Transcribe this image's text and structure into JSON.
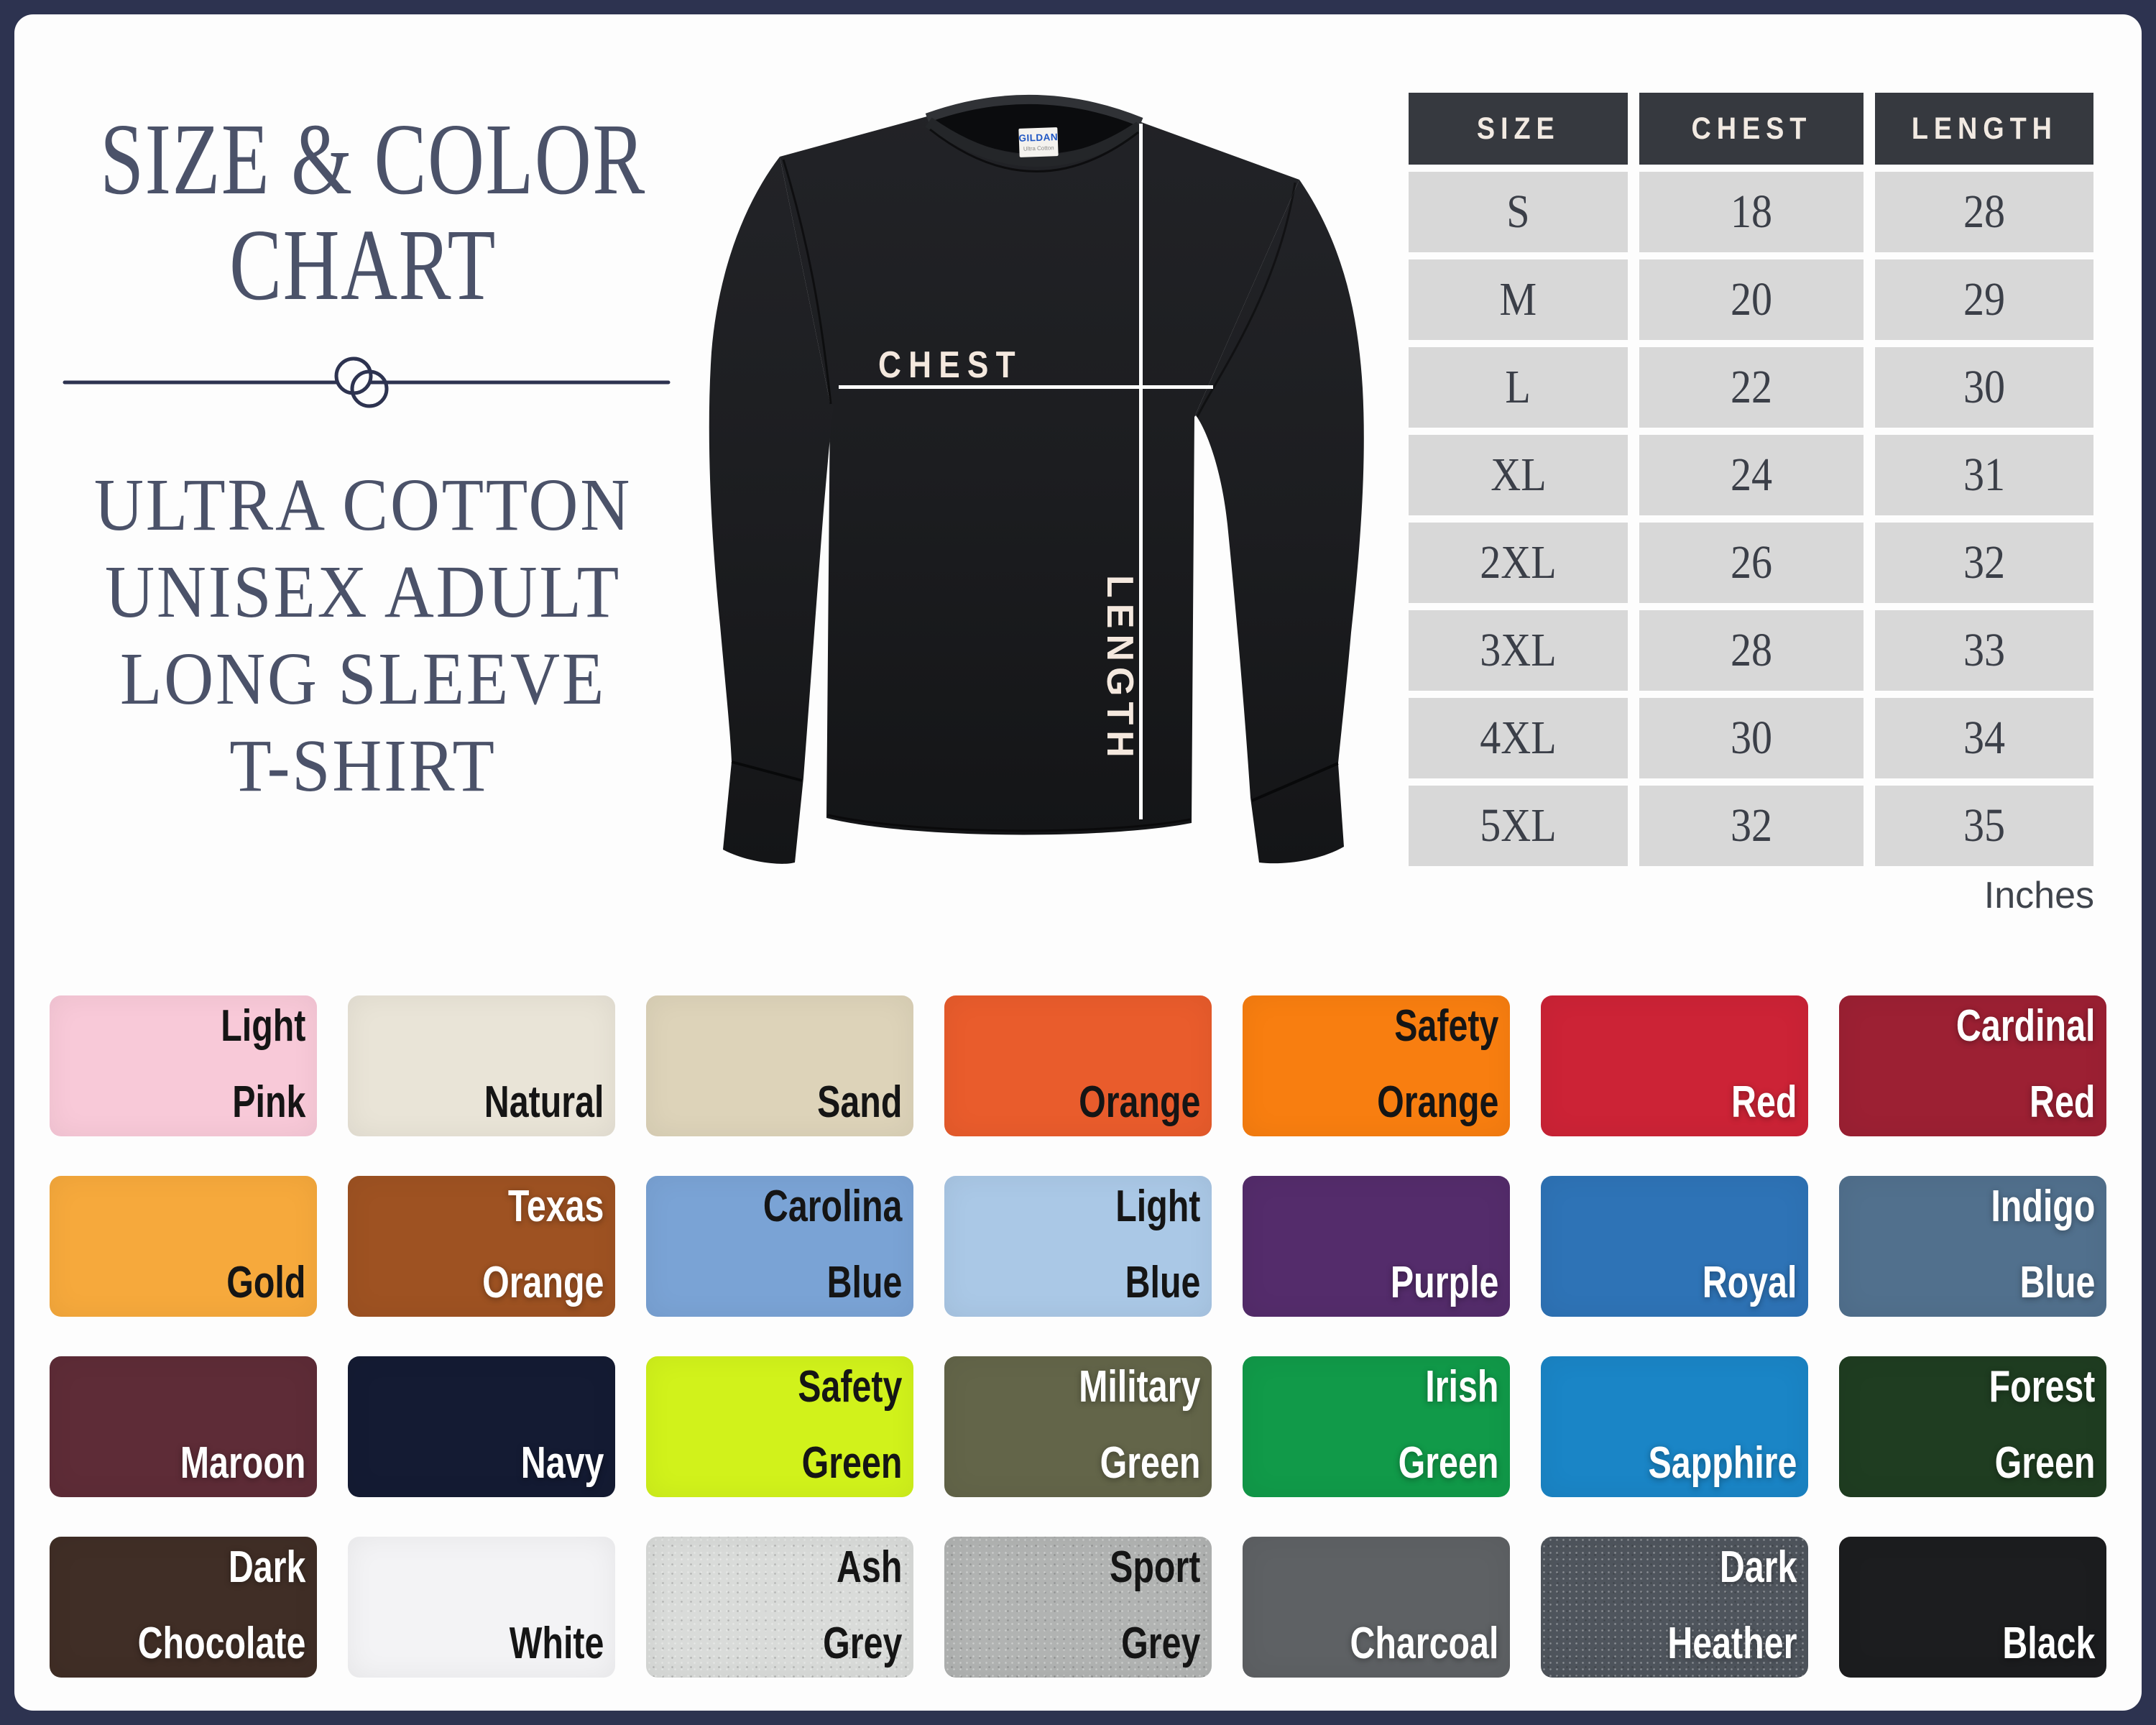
{
  "page": {
    "title_lines": [
      "SIZE & COLOR",
      "CHART"
    ],
    "subtitle_lines": [
      "ULTRA COTTON",
      "UNISEX ADULT",
      "LONG SLEEVE",
      "T-SHIRT"
    ]
  },
  "shirt": {
    "chest_label": "CHEST",
    "length_label": "LENGTH",
    "brand": "GILDAN",
    "brand_sub": "Ultra Cotton"
  },
  "size_table": {
    "headers": [
      "SIZE",
      "CHEST",
      "LENGTH"
    ],
    "rows": [
      [
        "S",
        "18",
        "28"
      ],
      [
        "M",
        "20",
        "29"
      ],
      [
        "L",
        "22",
        "30"
      ],
      [
        "XL",
        "24",
        "31"
      ],
      [
        "2XL",
        "26",
        "32"
      ],
      [
        "3XL",
        "28",
        "33"
      ],
      [
        "4XL",
        "30",
        "34"
      ],
      [
        "5XL",
        "32",
        "35"
      ]
    ],
    "unit_note": "Inches"
  },
  "chart_data": {
    "type": "table",
    "title": "SIZE & COLOR CHART",
    "subtitle": "ULTRA COTTON UNISEX ADULT LONG SLEEVE T-SHIRT",
    "columns": [
      "SIZE",
      "CHEST",
      "LENGTH"
    ],
    "rows": [
      [
        "S",
        18,
        28
      ],
      [
        "M",
        20,
        29
      ],
      [
        "L",
        22,
        30
      ],
      [
        "XL",
        24,
        31
      ],
      [
        "2XL",
        26,
        32
      ],
      [
        "3XL",
        28,
        33
      ],
      [
        "4XL",
        30,
        34
      ],
      [
        "5XL",
        32,
        35
      ]
    ],
    "units": "Inches"
  },
  "colors": {
    "frame": "#2d3350",
    "canvas": "#fdfdfd",
    "title_text": "#4b5269",
    "table_header_bg": "#36393f",
    "table_header_text": "#f2eae2",
    "table_cell_bg": "#d8d8d8",
    "table_cell_text": "#3b3f48",
    "measure_line": "#ffffff",
    "measure_text": "#f4e8de",
    "shirt_black": "#1d1e21"
  },
  "swatch_grid": {
    "rows": 4,
    "cols": 7,
    "swatches": [
      {
        "name": "Light Pink",
        "lines": [
          "Light",
          "Pink"
        ],
        "hex": "#f8c9d8",
        "text": "dark",
        "heather": false
      },
      {
        "name": "Natural",
        "lines": [
          "Natural"
        ],
        "hex": "#e9e4d7",
        "text": "dark",
        "heather": false
      },
      {
        "name": "Sand",
        "lines": [
          "Sand"
        ],
        "hex": "#ddd3b9",
        "text": "dark",
        "heather": false
      },
      {
        "name": "Orange",
        "lines": [
          "Orange"
        ],
        "hex": "#e95c2c",
        "text": "dark",
        "heather": false
      },
      {
        "name": "Safety Orange",
        "lines": [
          "Safety",
          "Orange"
        ],
        "hex": "#f87e10",
        "text": "dark",
        "heather": false
      },
      {
        "name": "Red",
        "lines": [
          "Red"
        ],
        "hex": "#cc2336",
        "text": "light",
        "heather": false
      },
      {
        "name": "Cardinal Red",
        "lines": [
          "Cardinal",
          "Red"
        ],
        "hex": "#9c2033",
        "text": "light",
        "heather": false
      },
      {
        "name": "Gold",
        "lines": [
          "Gold"
        ],
        "hex": "#f6a93c",
        "text": "dark",
        "heather": false
      },
      {
        "name": "Texas Orange",
        "lines": [
          "Texas",
          "Orange"
        ],
        "hex": "#9e5222",
        "text": "light",
        "heather": false
      },
      {
        "name": "Carolina Blue",
        "lines": [
          "Carolina",
          "Blue"
        ],
        "hex": "#7aa3d5",
        "text": "dark",
        "heather": false
      },
      {
        "name": "Light Blue",
        "lines": [
          "Light",
          "Blue"
        ],
        "hex": "#aac8e6",
        "text": "dark",
        "heather": false
      },
      {
        "name": "Purple",
        "lines": [
          "Purple"
        ],
        "hex": "#542c6b",
        "text": "light",
        "heather": false
      },
      {
        "name": "Royal",
        "lines": [
          "Royal"
        ],
        "hex": "#2e73b6",
        "text": "light",
        "heather": false
      },
      {
        "name": "Indigo Blue",
        "lines": [
          "Indigo",
          "Blue"
        ],
        "hex": "#51708d",
        "text": "light",
        "heather": false
      },
      {
        "name": "Maroon",
        "lines": [
          "Maroon"
        ],
        "hex": "#5e2c37",
        "text": "light",
        "heather": false
      },
      {
        "name": "Navy",
        "lines": [
          "Navy"
        ],
        "hex": "#141b33",
        "text": "light",
        "heather": false
      },
      {
        "name": "Safety Green",
        "lines": [
          "Safety",
          "Green"
        ],
        "hex": "#d1f21b",
        "text": "dark",
        "heather": false
      },
      {
        "name": "Military Green",
        "lines": [
          "Military",
          "Green"
        ],
        "hex": "#636549",
        "text": "light",
        "heather": false
      },
      {
        "name": "Irish Green",
        "lines": [
          "Irish",
          "Green"
        ],
        "hex": "#119a49",
        "text": "light",
        "heather": false
      },
      {
        "name": "Sapphire",
        "lines": [
          "Sapphire"
        ],
        "hex": "#1a85c6",
        "text": "light",
        "heather": false
      },
      {
        "name": "Forest Green",
        "lines": [
          "Forest",
          "Green"
        ],
        "hex": "#1f3d21",
        "text": "light",
        "heather": false
      },
      {
        "name": "Dark Chocolate",
        "lines": [
          "Dark",
          "Chocolate"
        ],
        "hex": "#402e26",
        "text": "light",
        "heather": false
      },
      {
        "name": "White",
        "lines": [
          "White"
        ],
        "hex": "#f3f3f5",
        "text": "dark",
        "heather": false
      },
      {
        "name": "Ash Grey",
        "lines": [
          "Ash",
          "Grey"
        ],
        "hex": "#d9dbd9",
        "text": "dark",
        "heather": true
      },
      {
        "name": "Sport Grey",
        "lines": [
          "Sport",
          "Grey"
        ],
        "hex": "#b1b3b2",
        "text": "dark",
        "heather": true
      },
      {
        "name": "Charcoal",
        "lines": [
          "Charcoal"
        ],
        "hex": "#5e6164",
        "text": "light",
        "heather": false
      },
      {
        "name": "Dark Heather",
        "lines": [
          "Dark",
          "Heather"
        ],
        "hex": "#4f555d",
        "text": "light",
        "heather": true
      },
      {
        "name": "Black",
        "lines": [
          "Black"
        ],
        "hex": "#1c1d1f",
        "text": "light",
        "heather": false
      }
    ]
  }
}
